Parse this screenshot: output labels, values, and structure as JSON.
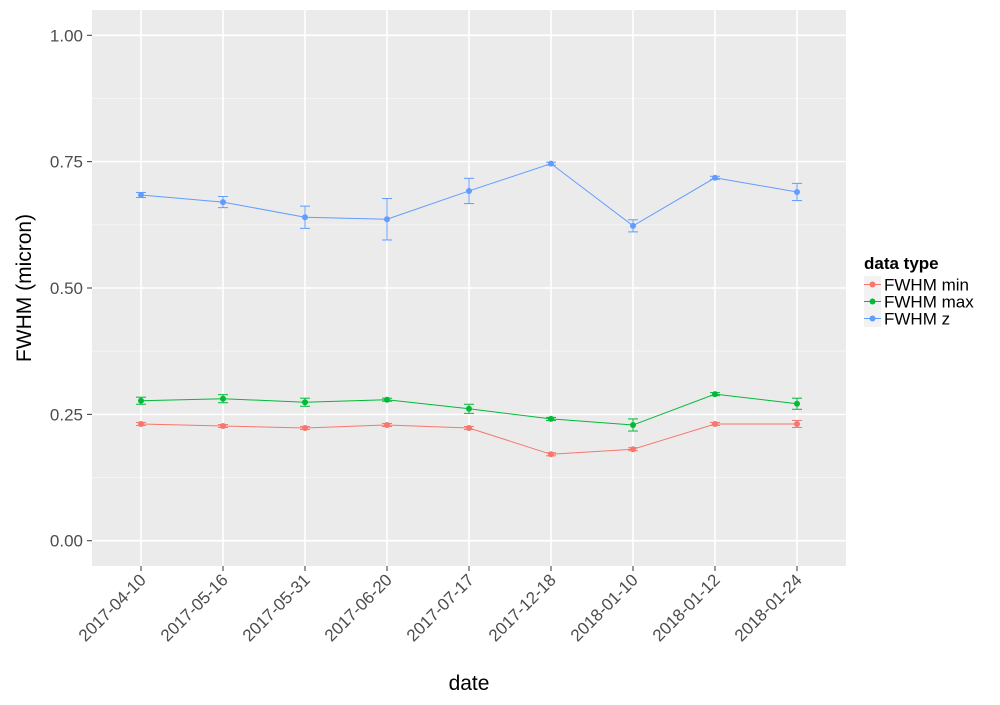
{
  "chart_data": {
    "type": "line",
    "xlabel": "date",
    "ylabel": "FWHM (micron)",
    "categories": [
      "2017-04-10",
      "2017-05-16",
      "2017-05-31",
      "2017-06-20",
      "2017-07-17",
      "2017-12-18",
      "2018-01-10",
      "2018-01-12",
      "2018-01-24"
    ],
    "ylim": [
      -0.05,
      1.05
    ],
    "yticks": [
      0.0,
      0.25,
      0.5,
      0.75,
      1.0
    ],
    "ytick_labels": [
      "0.00",
      "0.25",
      "0.50",
      "0.75",
      "1.00"
    ],
    "grid": true,
    "legend": {
      "title": "data type",
      "position": "right"
    },
    "series": [
      {
        "name": "FWHM min",
        "color": "#F8766D",
        "values": [
          0.231,
          0.227,
          0.223,
          0.229,
          0.223,
          0.171,
          0.181,
          0.231,
          0.231
        ],
        "error": [
          0.003,
          0.003,
          0.003,
          0.003,
          0.003,
          0.003,
          0.003,
          0.003,
          0.007
        ]
      },
      {
        "name": "FWHM max",
        "color": "#00BA38",
        "values": [
          0.277,
          0.281,
          0.274,
          0.279,
          0.261,
          0.241,
          0.229,
          0.29,
          0.271
        ],
        "error": [
          0.007,
          0.008,
          0.008,
          0.003,
          0.009,
          0.003,
          0.012,
          0.003,
          0.011
        ]
      },
      {
        "name": "FWHM z",
        "color": "#619CFF",
        "values": [
          0.684,
          0.67,
          0.64,
          0.636,
          0.692,
          0.746,
          0.623,
          0.718,
          0.69
        ],
        "error": [
          0.005,
          0.011,
          0.022,
          0.041,
          0.025,
          0.003,
          0.012,
          0.003,
          0.017
        ]
      }
    ]
  }
}
